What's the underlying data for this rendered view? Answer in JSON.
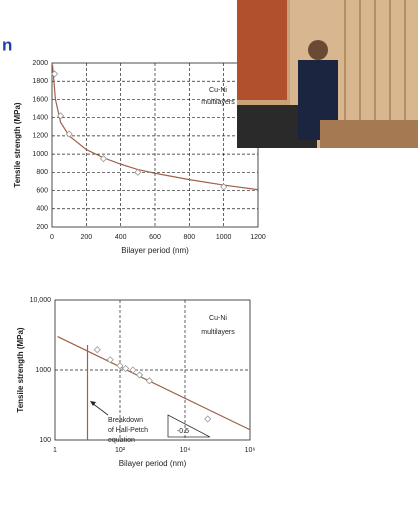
{
  "slide_title": "n",
  "chart_data": [
    {
      "type": "line",
      "xlabel": "Bilayer period (nm)",
      "ylabel": "Tensile strength (MPa)",
      "annotations": [
        "Cu-Ni",
        "multilayers"
      ],
      "xlim": [
        0,
        1200
      ],
      "xticks": [
        0,
        200,
        400,
        600,
        800,
        1000,
        1200
      ],
      "ylim": [
        200,
        2000
      ],
      "yticks": [
        200,
        400,
        600,
        800,
        1000,
        1200,
        1400,
        1600,
        1800,
        2000
      ],
      "grid": true,
      "log": false,
      "series": [
        {
          "color": "#a0604a",
          "x": [
            3,
            20,
            50,
            100,
            200,
            300,
            400,
            500,
            600,
            800,
            1000,
            1200
          ],
          "values": [
            1980,
            1600,
            1350,
            1200,
            1050,
            960,
            890,
            830,
            790,
            720,
            660,
            610
          ]
        },
        {
          "color": "#9a9a9a",
          "marker": "diamond",
          "x": [
            15,
            50,
            100,
            300,
            500,
            1000
          ],
          "values": [
            1880,
            1420,
            1220,
            950,
            800,
            640
          ]
        }
      ]
    },
    {
      "type": "line",
      "xlabel": "Bilayer period (nm)",
      "ylabel": "Tensile strength (MPa)",
      "annotations": [
        "Cu-Ni",
        "multilayers",
        "Breakdown",
        "of Hall-Petch",
        "equation",
        "-0.5"
      ],
      "xlim": [
        1,
        1000000
      ],
      "xticks": [
        1,
        {
          "value": 100,
          "label": "10²"
        },
        {
          "value": 10000,
          "label": "10⁴"
        },
        {
          "value": 1000000,
          "label": "10⁶"
        }
      ],
      "ylim": [
        100,
        10000
      ],
      "yticks": [
        100,
        1000,
        {
          "value": 10000,
          "label": "10,000"
        }
      ],
      "grid": true,
      "log": true,
      "vline": 10,
      "series": [
        {
          "color": "#a0604a",
          "x": [
            1.2,
            1000000
          ],
          "values": [
            3000,
            140
          ]
        },
        {
          "color": "#9a9a9a",
          "marker": "diamond",
          "x": [
            20,
            50,
            100,
            150,
            250,
            400,
            800,
            50000
          ],
          "values": [
            1950,
            1400,
            1150,
            1050,
            1000,
            850,
            700,
            200
          ]
        }
      ]
    }
  ]
}
